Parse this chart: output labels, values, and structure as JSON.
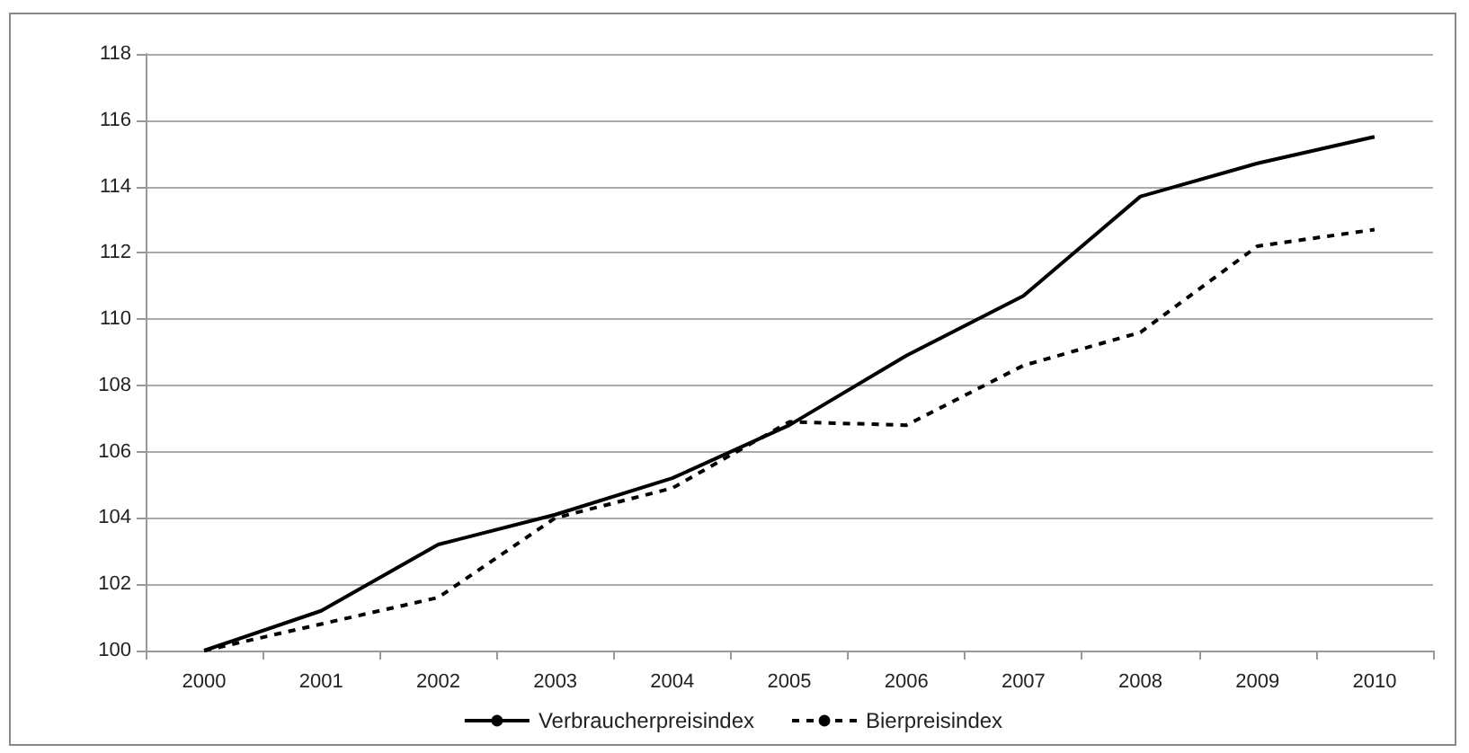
{
  "chart_data": {
    "type": "line",
    "categories": [
      "2000",
      "2001",
      "2002",
      "2003",
      "2004",
      "2005",
      "2006",
      "2007",
      "2008",
      "2009",
      "2010"
    ],
    "series": [
      {
        "name": "Verbraucherpreisindex",
        "color": "#000000",
        "line_style": "solid",
        "values": [
          100,
          101.2,
          103.2,
          104.1,
          105.2,
          106.8,
          108.9,
          110.7,
          113.7,
          114.7,
          115.5
        ]
      },
      {
        "name": "Bierpreisindex",
        "color": "#000000",
        "line_style": "dashed",
        "values": [
          100,
          100.8,
          101.6,
          104.0,
          104.9,
          106.9,
          106.8,
          108.6,
          109.6,
          112.2,
          112.7
        ]
      }
    ],
    "ylim": [
      100,
      118
    ],
    "yticks": [
      100,
      102,
      104,
      106,
      108,
      110,
      112,
      114,
      116,
      118
    ],
    "grid": "y",
    "legend": "bottom",
    "marker": "none"
  }
}
